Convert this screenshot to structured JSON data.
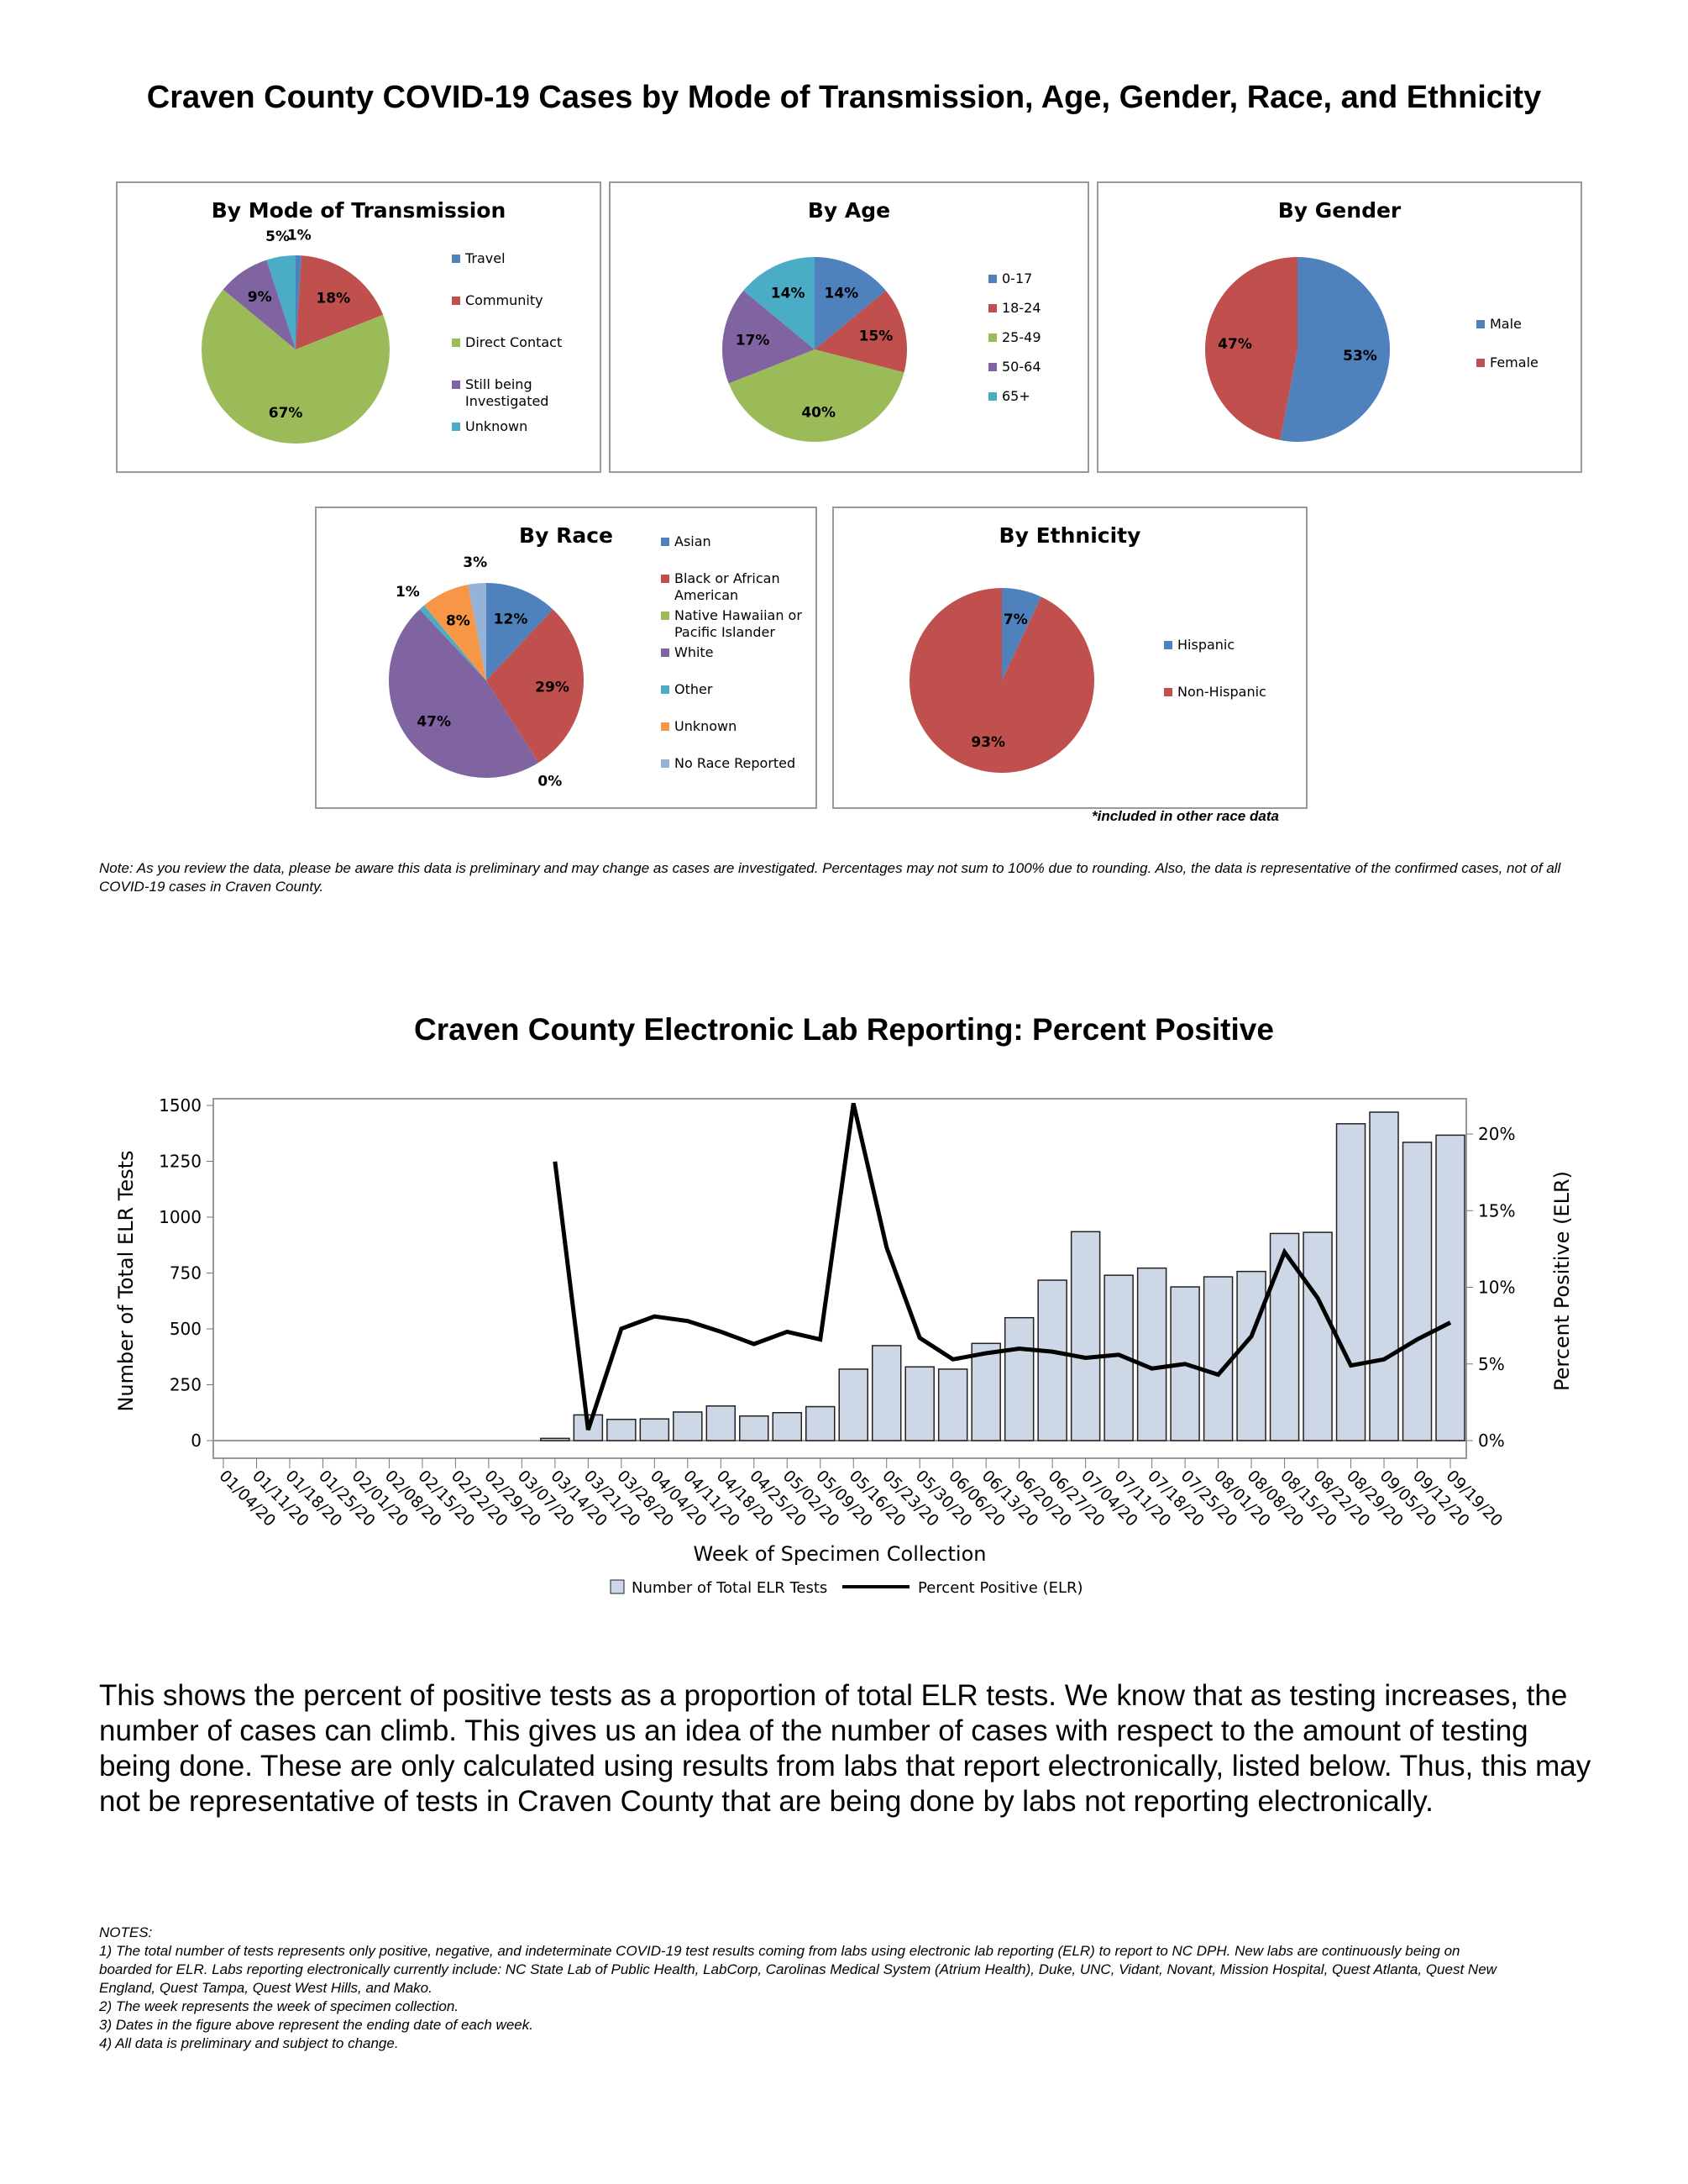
{
  "title": "Craven County COVID-19 Cases by Mode of Transmission, Age, Gender, Race, and Ethnicity",
  "race_footnote": "*included in other race data",
  "note": "Note: As you review the data, please be aware this data is preliminary and may change as cases are investigated. Percentages may not sum to 100% due to rounding. Also, the data is representative of the confirmed cases, not of all COVID-19 cases in Craven County.",
  "paragraph": "This shows the percent of positive tests as a proportion of total ELR tests. We know that as testing increases, the number of cases can climb. This gives us an idea of the number of cases with respect to the amount of testing being done. These are only calculated using results from labs that report electronically, listed below. Thus, this may not be representative of tests in Craven County that are being done by labs not reporting electronically.",
  "notes": [
    "NOTES:",
    " 1) The total number of tests represents only positive, negative, and indeterminate COVID-19 test results coming from labs using electronic lab reporting (ELR) to report to NC DPH. New labs are continuously being on boarded for ELR. Labs reporting electronically currently include: NC State Lab of Public Health, LabCorp, Carolinas Medical System (Atrium Health), Duke, UNC, Vidant, Novant, Mission Hospital, Quest Atlanta, Quest New England, Quest Tampa, Quest West Hills, and Mako.",
    " 2) The week represents the week of specimen collection.",
    " 3) Dates in the figure above represent the ending date of each week.",
    "4) All data is preliminary and subject to change."
  ],
  "chart_data": [
    {
      "type": "pie",
      "title": "By Mode of Transmission",
      "labels": [
        "Travel",
        "Community",
        "Direct Contact",
        "Still being Investigated",
        "Unknown"
      ],
      "values": [
        1,
        18,
        67,
        9,
        5
      ],
      "colors": [
        "#4F81BD",
        "#C0504D",
        "#9BBB59",
        "#8064A2",
        "#4BACC6"
      ]
    },
    {
      "type": "pie",
      "title": "By Age",
      "labels": [
        "0-17",
        "18-24",
        "25-49",
        "50-64",
        "65+"
      ],
      "values": [
        14,
        15,
        40,
        17,
        14
      ],
      "colors": [
        "#4F81BD",
        "#C0504D",
        "#9BBB59",
        "#8064A2",
        "#4BACC6"
      ]
    },
    {
      "type": "pie",
      "title": "By Gender",
      "labels": [
        "Male",
        "Female"
      ],
      "values": [
        53,
        47
      ],
      "colors": [
        "#4F81BD",
        "#C0504D"
      ]
    },
    {
      "type": "pie",
      "title": "By Race",
      "labels": [
        "Asian",
        "Black or African American",
        "Native Hawaiian or Pacific Islander",
        "White",
        "Other",
        "Unknown",
        "No Race Reported"
      ],
      "values": [
        12,
        29,
        0,
        47,
        1,
        8,
        3
      ],
      "colors": [
        "#4F81BD",
        "#C0504D",
        "#9BBB59",
        "#8064A2",
        "#4BACC6",
        "#F79646",
        "#95B3D7"
      ]
    },
    {
      "type": "pie",
      "title": "By Ethnicity",
      "labels": [
        "Hispanic",
        "Non-Hispanic"
      ],
      "values": [
        7,
        93
      ],
      "colors": [
        "#4F81BD",
        "#C0504D"
      ]
    },
    {
      "type": "bar+line",
      "title": "Craven County Electronic Lab Reporting: Percent Positive",
      "xlabel": "Week of Specimen Collection",
      "ylabel": "Number of Total ELR Tests",
      "y2label": "Percent Positive (ELR)",
      "ylim": [
        0,
        1500
      ],
      "yticks": [
        0,
        250,
        500,
        750,
        1000,
        1250,
        1500
      ],
      "y2lim": [
        0,
        22
      ],
      "y2ticks": [
        "0%",
        "5%",
        "10%",
        "15%",
        "20%"
      ],
      "categories": [
        "01/04/20",
        "01/11/20",
        "01/18/20",
        "01/25/20",
        "02/01/20",
        "02/08/20",
        "02/15/20",
        "02/22/20",
        "02/29/20",
        "03/07/20",
        "03/14/20",
        "03/21/20",
        "03/28/20",
        "04/04/20",
        "04/11/20",
        "04/18/20",
        "04/25/20",
        "05/02/20",
        "05/09/20",
        "05/16/20",
        "05/23/20",
        "05/30/20",
        "06/06/20",
        "06/13/20",
        "06/20/20",
        "06/27/20",
        "07/04/20",
        "07/11/20",
        "07/18/20",
        "07/25/20",
        "08/01/20",
        "08/08/20",
        "08/15/20",
        "08/22/20",
        "08/29/20",
        "09/05/20",
        "09/12/20",
        "09/19/20"
      ],
      "series": [
        {
          "name": "Number of Total ELR Tests",
          "type": "bar",
          "color": "#CDD7E6",
          "values": [
            0,
            0,
            0,
            0,
            0,
            0,
            0,
            0,
            0,
            0,
            10,
            115,
            95,
            97,
            128,
            155,
            110,
            125,
            152,
            320,
            425,
            330,
            320,
            435,
            550,
            718,
            935,
            740,
            772,
            688,
            733,
            757,
            927,
            932,
            1418,
            1470,
            1335,
            1367
          ]
        },
        {
          "name": "Percent Positive (ELR)",
          "type": "line",
          "color": "#000000",
          "values": [
            null,
            null,
            null,
            null,
            null,
            null,
            null,
            null,
            null,
            null,
            18.2,
            0.7,
            7.3,
            8.1,
            7.8,
            7.1,
            6.3,
            7.1,
            6.6,
            22.0,
            12.6,
            6.7,
            5.3,
            5.7,
            6.0,
            5.8,
            5.4,
            5.6,
            4.7,
            5.0,
            4.3,
            6.8,
            12.3,
            9.3,
            4.9,
            5.3,
            6.6,
            7.7
          ]
        }
      ],
      "legend": "bottom"
    }
  ]
}
